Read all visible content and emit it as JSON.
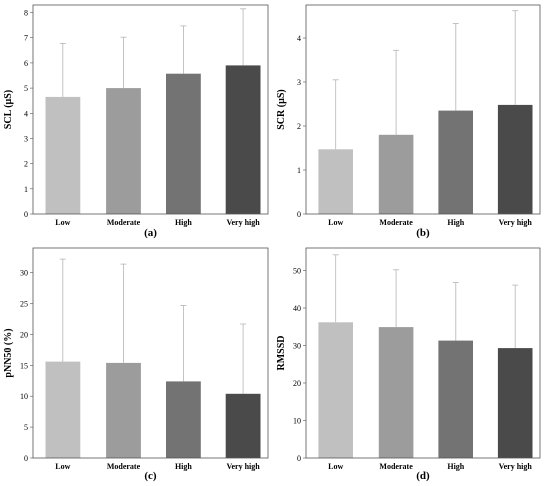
{
  "chart_data": [
    {
      "type": "bar",
      "panel_label": "(a)",
      "ylabel": "SCL (µS)",
      "categories": [
        "Low",
        "Moderate",
        "High",
        "Very high"
      ],
      "values": [
        4.65,
        5.0,
        5.57,
        5.9
      ],
      "error_upper": [
        6.77,
        7.02,
        7.47,
        8.15
      ],
      "ylim": [
        0,
        8.3
      ],
      "yticks": [
        0,
        1,
        2,
        3,
        4,
        5,
        6,
        7,
        8
      ],
      "colors": [
        "#c0c0c0",
        "#9c9c9c",
        "#737373",
        "#4a4a4a"
      ],
      "grid": false
    },
    {
      "type": "bar",
      "panel_label": "(b)",
      "ylabel": "SCR (µS)",
      "categories": [
        "Low",
        "Moderate",
        "High",
        "Very high"
      ],
      "values": [
        1.47,
        1.8,
        2.35,
        2.48
      ],
      "error_upper": [
        3.05,
        3.72,
        4.33,
        4.62
      ],
      "ylim": [
        0,
        4.75
      ],
      "yticks": [
        0,
        1,
        2,
        3,
        4
      ],
      "colors": [
        "#c0c0c0",
        "#9c9c9c",
        "#737373",
        "#4a4a4a"
      ],
      "grid": false
    },
    {
      "type": "bar",
      "panel_label": "(c)",
      "ylabel": "pNN50 (%)",
      "categories": [
        "Low",
        "Moderate",
        "High",
        "Very high"
      ],
      "values": [
        15.6,
        15.4,
        12.4,
        10.4
      ],
      "error_upper": [
        32.2,
        31.4,
        24.7,
        21.7
      ],
      "ylim": [
        0,
        34
      ],
      "yticks": [
        0,
        5,
        10,
        15,
        20,
        25,
        30
      ],
      "colors": [
        "#c0c0c0",
        "#9c9c9c",
        "#737373",
        "#4a4a4a"
      ],
      "grid": false
    },
    {
      "type": "bar",
      "panel_label": "(d)",
      "ylabel": "RMSSD",
      "categories": [
        "Low",
        "Moderate",
        "High",
        "Very high"
      ],
      "values": [
        36.2,
        34.9,
        31.3,
        29.3
      ],
      "error_upper": [
        54.2,
        50.2,
        46.8,
        46.1
      ],
      "ylim": [
        0,
        56
      ],
      "yticks": [
        0,
        10,
        20,
        30,
        40,
        50
      ],
      "colors": [
        "#c0c0c0",
        "#9c9c9c",
        "#737373",
        "#4a4a4a"
      ],
      "grid": false
    }
  ]
}
